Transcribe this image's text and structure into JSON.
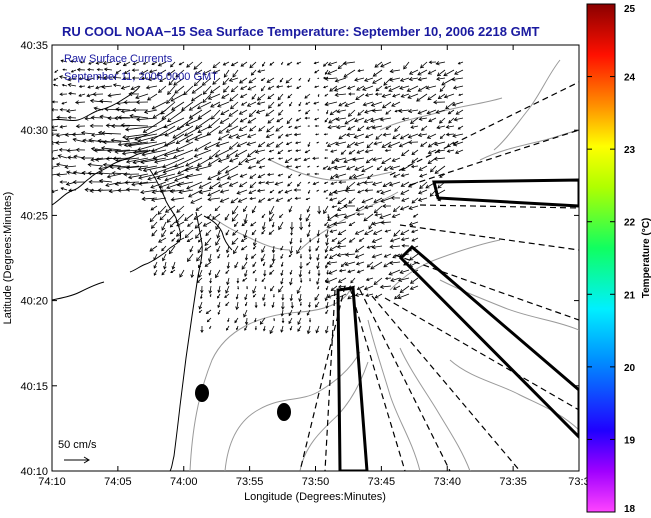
{
  "title": "RU COOL  NOAA−15  Sea Surface Temperature:  September 10, 2006 2218 GMT",
  "legend": {
    "line1": "Raw Surface Currents",
    "line2": "September 11, 2006 0000 GMT"
  },
  "scale_label": "50 cm/s",
  "axes": {
    "xlabel": "Longitude (Degrees:Minutes)",
    "ylabel": "Latitude (Degrees:Minutes)",
    "x_ticks": [
      "74:10",
      "74:05",
      "74:00",
      "73:55",
      "73:50",
      "73:45",
      "73:40",
      "73:35",
      "73:3"
    ],
    "y_ticks": [
      "40:35",
      "40:30",
      "40:25",
      "40:20",
      "40:15",
      "40:10"
    ]
  },
  "colorbar": {
    "label": "Temperature (°C)",
    "min": 18,
    "max": 25,
    "ticks": [
      "25",
      "24",
      "23",
      "22",
      "21",
      "20",
      "19",
      "18"
    ]
  },
  "colors": {
    "title": "#1a1aa0",
    "coast": "#000000",
    "contour": "#9a9a9a",
    "vectors": "#000000"
  }
}
